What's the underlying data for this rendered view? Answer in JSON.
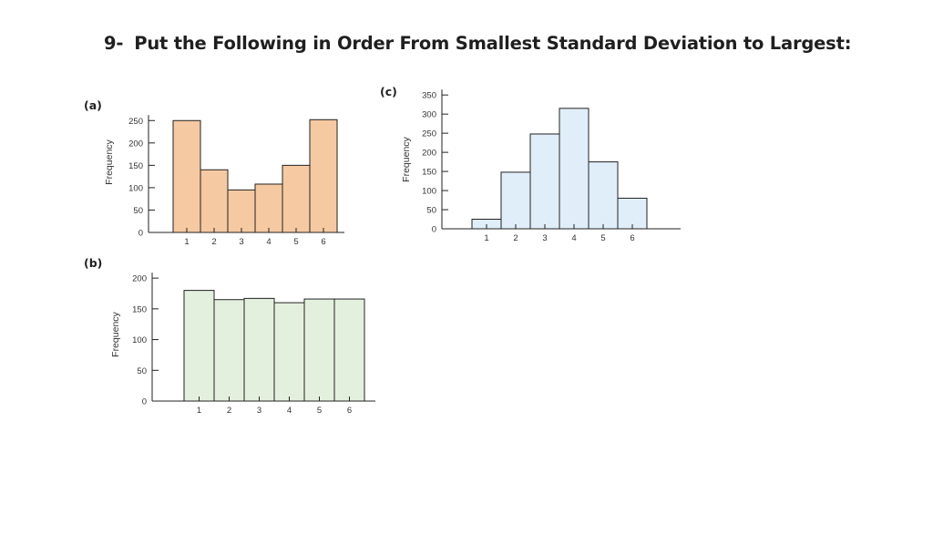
{
  "question": {
    "number": "9-",
    "text": "Put the Following in Order From Smallest Standard Deviation to Largest:"
  },
  "chart_data": [
    {
      "type": "bar",
      "panel_label": "(a)",
      "ylabel": "Frequency",
      "categories": [
        "1",
        "2",
        "3",
        "4",
        "5",
        "6"
      ],
      "values": [
        250,
        140,
        95,
        108,
        150,
        252
      ],
      "yticks": [
        0,
        50,
        100,
        150,
        200,
        250
      ],
      "ylim": [
        0,
        275
      ],
      "fill": "#f5c9a1",
      "grid": false
    },
    {
      "type": "bar",
      "panel_label": "(b)",
      "ylabel": "Frequency",
      "categories": [
        "1",
        "2",
        "3",
        "4",
        "5",
        "6"
      ],
      "values": [
        180,
        165,
        167,
        160,
        166,
        166
      ],
      "yticks": [
        0,
        50,
        100,
        150,
        200
      ],
      "ylim": [
        0,
        215
      ],
      "fill": "#e4f0de",
      "grid": false
    },
    {
      "type": "bar",
      "panel_label": "(c)",
      "ylabel": "Frequency",
      "categories": [
        "1",
        "2",
        "3",
        "4",
        "5",
        "6"
      ],
      "values": [
        25,
        148,
        248,
        315,
        175,
        80
      ],
      "yticks": [
        0,
        50,
        100,
        150,
        200,
        250,
        300,
        350
      ],
      "ylim": [
        0,
        360
      ],
      "fill": "#e0eef9",
      "grid": false
    }
  ]
}
